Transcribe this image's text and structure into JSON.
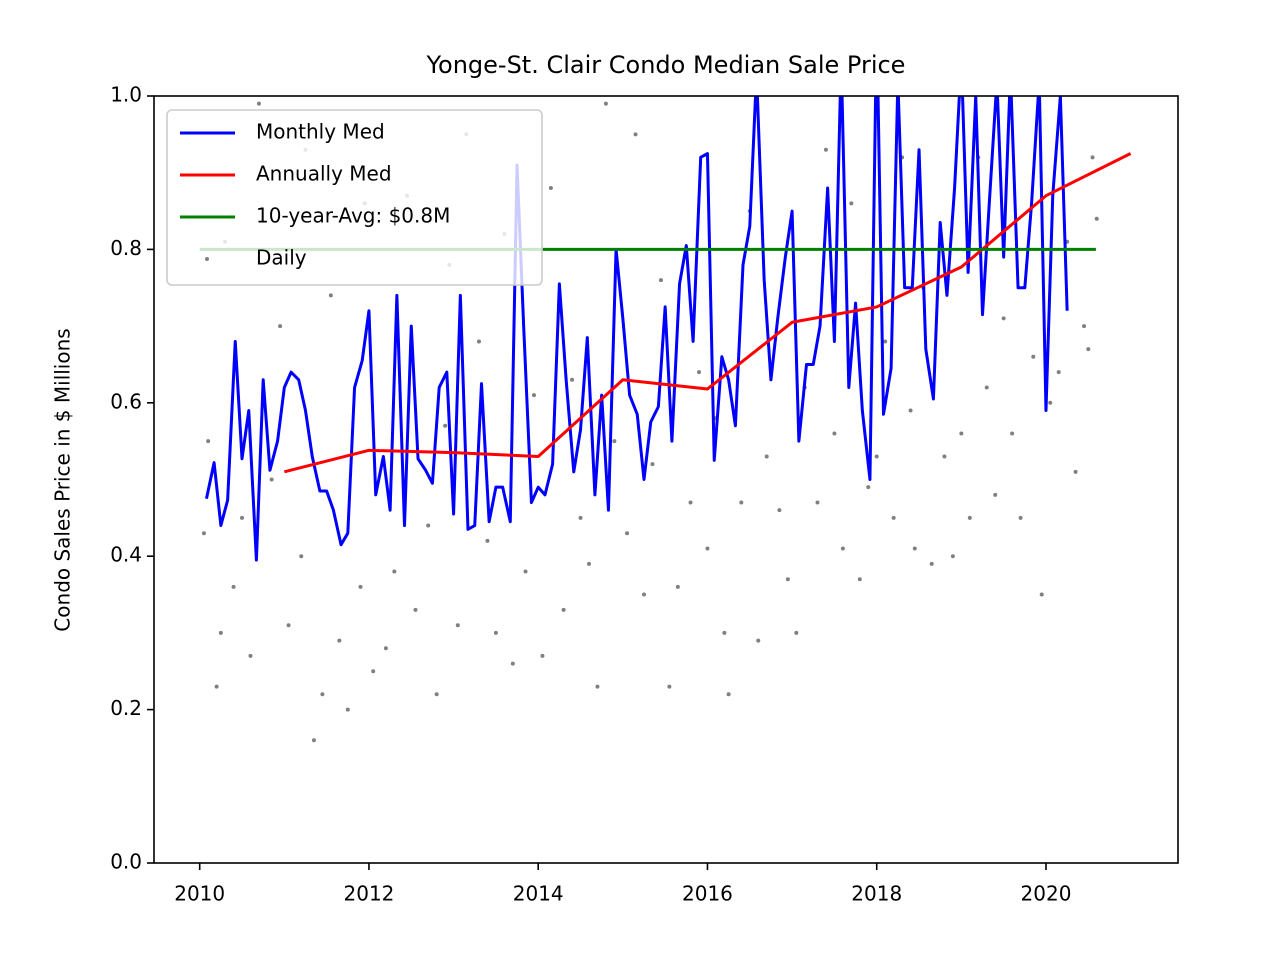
{
  "chart_data": {
    "type": "line",
    "title": "Yonge-St. Clair Condo Median Sale Price",
    "ylabel": "Condo Sales Price in $ Millions",
    "xlim": [
      2009.46,
      2021.56
    ],
    "ylim": [
      0,
      1
    ],
    "xticks": [
      2010,
      2012,
      2014,
      2016,
      2018,
      2020
    ],
    "yticks": [
      {
        "value": 0,
        "label": "0.0"
      },
      0.2,
      0.4,
      0.6,
      0.8,
      {
        "value": 1,
        "label": "1.0"
      }
    ],
    "grid": false,
    "legend": "upper left",
    "series": [
      {
        "name": "Monthly Med",
        "type": "line",
        "color": "#0000ff",
        "x": [
          2010.08,
          2010.17,
          2010.25,
          2010.33,
          2010.42,
          2010.5,
          2010.58,
          2010.67,
          2010.75,
          2010.83,
          2010.92,
          2011.0,
          2011.08,
          2011.17,
          2011.25,
          2011.33,
          2011.42,
          2011.5,
          2011.58,
          2011.67,
          2011.75,
          2011.83,
          2011.92,
          2012.0,
          2012.08,
          2012.17,
          2012.25,
          2012.33,
          2012.42,
          2012.5,
          2012.58,
          2012.67,
          2012.75,
          2012.83,
          2012.92,
          2013.0,
          2013.08,
          2013.17,
          2013.25,
          2013.33,
          2013.42,
          2013.5,
          2013.58,
          2013.67,
          2013.75,
          2013.83,
          2013.92,
          2014.0,
          2014.08,
          2014.17,
          2014.25,
          2014.33,
          2014.42,
          2014.5,
          2014.58,
          2014.67,
          2014.75,
          2014.83,
          2014.92,
          2015.0,
          2015.08,
          2015.17,
          2015.25,
          2015.33,
          2015.42,
          2015.5,
          2015.58,
          2015.67,
          2015.75,
          2015.83,
          2015.92,
          2016.0,
          2016.08,
          2016.17,
          2016.25,
          2016.33,
          2016.42,
          2016.5,
          2016.58,
          2016.67,
          2016.75,
          2016.83,
          2016.92,
          2017.0,
          2017.08,
          2017.17,
          2017.25,
          2017.33,
          2017.42,
          2017.5,
          2017.58,
          2017.67,
          2017.75,
          2017.83,
          2017.92,
          2018.0,
          2018.08,
          2018.17,
          2018.25,
          2018.33,
          2018.42,
          2018.5,
          2018.58,
          2018.67,
          2018.75,
          2018.83,
          2018.92,
          2019.0,
          2019.08,
          2019.17,
          2019.25,
          2019.33,
          2019.42,
          2019.5,
          2019.58,
          2019.67,
          2019.75,
          2019.83,
          2019.92,
          2020.0,
          2020.08,
          2020.17,
          2020.25
        ],
        "values": [
          0.475,
          0.522,
          0.44,
          0.473,
          0.68,
          0.527,
          0.59,
          0.395,
          0.63,
          0.512,
          0.55,
          0.62,
          0.64,
          0.63,
          0.59,
          0.53,
          0.485,
          0.485,
          0.46,
          0.415,
          0.43,
          0.62,
          0.655,
          0.72,
          0.48,
          0.53,
          0.46,
          0.74,
          0.44,
          0.7,
          0.527,
          0.512,
          0.495,
          0.62,
          0.64,
          0.455,
          0.74,
          0.435,
          0.44,
          0.625,
          0.445,
          0.49,
          0.49,
          0.445,
          0.91,
          0.695,
          0.47,
          0.49,
          0.48,
          0.52,
          0.755,
          0.63,
          0.51,
          0.565,
          0.685,
          0.48,
          0.61,
          0.46,
          0.8,
          0.71,
          0.61,
          0.585,
          0.5,
          0.575,
          0.595,
          0.725,
          0.55,
          0.755,
          0.805,
          0.68,
          0.92,
          0.925,
          0.525,
          0.66,
          0.63,
          0.57,
          0.78,
          0.83,
          1.03,
          0.76,
          0.63,
          0.71,
          0.79,
          0.85,
          0.55,
          0.65,
          0.65,
          0.7,
          0.88,
          0.68,
          1.05,
          0.62,
          0.73,
          0.59,
          0.5,
          1.1,
          0.585,
          0.645,
          1.02,
          0.75,
          0.75,
          0.93,
          0.67,
          0.605,
          0.835,
          0.74,
          0.88,
          1.05,
          0.77,
          1.0,
          0.715,
          0.86,
          1.02,
          0.79,
          1.03,
          0.75,
          0.75,
          0.86,
          1.02,
          0.59,
          0.87,
          1.0,
          0.72
        ]
      },
      {
        "name": "Annually Med",
        "type": "line",
        "color": "#ff0000",
        "x": [
          2011,
          2012,
          2013,
          2014,
          2015,
          2016,
          2017,
          2018,
          2019,
          2020,
          2021
        ],
        "values": [
          0.51,
          0.538,
          0.535,
          0.53,
          0.63,
          0.618,
          0.705,
          0.725,
          0.777,
          0.87,
          0.925
        ]
      },
      {
        "name": "10-year-Avg: $0.8M",
        "type": "line",
        "color": "#008000",
        "x": [
          2010,
          2020.59
        ],
        "values": [
          0.8,
          0.8
        ]
      },
      {
        "name": "Daily",
        "type": "scatter",
        "color": "#808080",
        "x": [
          2010.05,
          2010.1,
          2010.2,
          2010.25,
          2010.3,
          2010.4,
          2010.5,
          2010.6,
          2010.7,
          2010.85,
          2010.95,
          2011.05,
          2011.2,
          2011.25,
          2011.35,
          2011.45,
          2011.55,
          2011.65,
          2011.75,
          2011.9,
          2011.95,
          2012.05,
          2012.2,
          2012.3,
          2012.45,
          2012.55,
          2012.7,
          2012.8,
          2012.9,
          2012.95,
          2013.05,
          2013.15,
          2013.3,
          2013.4,
          2013.5,
          2013.6,
          2013.7,
          2013.85,
          2013.95,
          2014.05,
          2014.15,
          2014.3,
          2014.4,
          2014.5,
          2014.6,
          2014.7,
          2014.8,
          2014.9,
          2015.05,
          2015.15,
          2015.25,
          2015.35,
          2015.45,
          2015.55,
          2015.65,
          2015.8,
          2015.9,
          2016.0,
          2016.1,
          2016.2,
          2016.25,
          2016.4,
          2016.5,
          2016.6,
          2016.7,
          2016.85,
          2016.95,
          2017.05,
          2017.15,
          2017.3,
          2017.4,
          2017.5,
          2017.6,
          2017.7,
          2017.8,
          2017.9,
          2018.0,
          2018.1,
          2018.2,
          2018.3,
          2018.4,
          2018.45,
          2018.55,
          2018.65,
          2018.8,
          2018.9,
          2019.0,
          2019.1,
          2019.2,
          2019.3,
          2019.4,
          2019.5,
          2019.6,
          2019.7,
          2019.85,
          2019.95,
          2020.05,
          2020.15,
          2020.25,
          2020.35,
          2020.45,
          2020.5,
          2020.55,
          2020.6
        ],
        "values": [
          0.43,
          0.55,
          0.23,
          0.3,
          0.81,
          0.36,
          0.45,
          0.27,
          0.99,
          0.5,
          0.7,
          0.31,
          0.4,
          0.93,
          0.16,
          0.22,
          0.74,
          0.29,
          0.2,
          0.36,
          0.86,
          0.25,
          0.28,
          0.38,
          0.87,
          0.33,
          0.44,
          0.22,
          0.57,
          0.78,
          0.31,
          0.95,
          0.68,
          0.42,
          0.3,
          0.82,
          0.26,
          0.38,
          0.61,
          0.27,
          0.88,
          0.33,
          0.63,
          0.45,
          0.39,
          0.23,
          0.99,
          0.55,
          0.43,
          0.95,
          0.35,
          0.52,
          0.76,
          0.23,
          0.36,
          0.47,
          0.64,
          0.41,
          0.58,
          0.3,
          0.22,
          0.47,
          0.85,
          0.29,
          0.53,
          0.46,
          0.37,
          0.3,
          0.62,
          0.47,
          0.93,
          0.56,
          0.41,
          0.86,
          0.37,
          0.49,
          0.53,
          0.68,
          0.45,
          0.92,
          0.59,
          0.41,
          0.75,
          0.39,
          0.53,
          0.4,
          0.56,
          0.45,
          0.92,
          0.62,
          0.48,
          0.71,
          0.56,
          0.45,
          0.66,
          0.35,
          0.6,
          0.64,
          0.81,
          0.51,
          0.7,
          0.67,
          0.92,
          0.84
        ]
      }
    ]
  }
}
